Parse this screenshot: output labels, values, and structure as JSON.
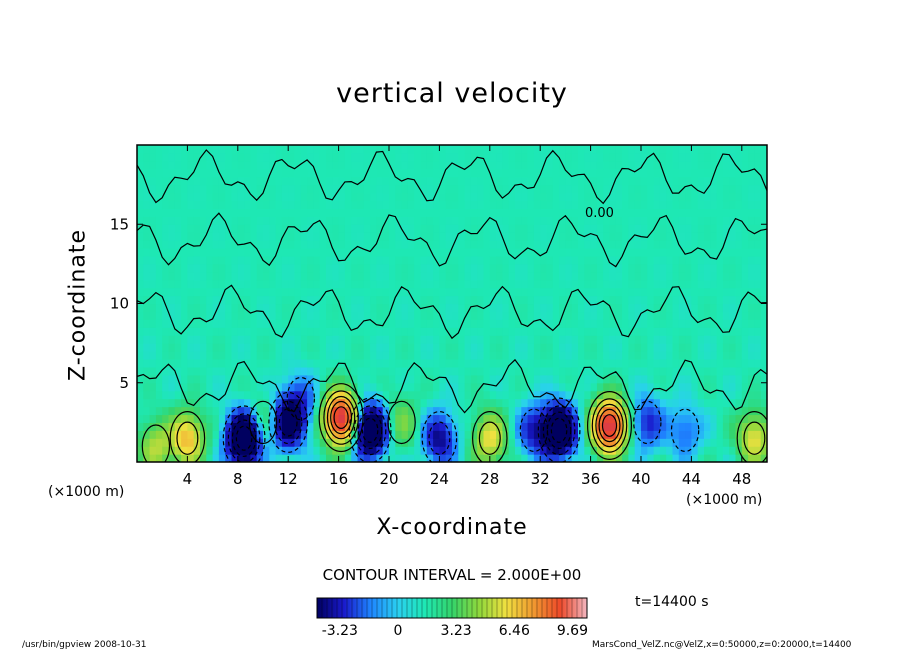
{
  "chart_data": {
    "type": "heatmap",
    "title": "vertical velocity",
    "xlabel": "X-coordinate",
    "ylabel": "Z-coordinate",
    "x_unit_left": "(×1000 m)",
    "x_unit_right": "(×1000 m)",
    "xlim": [
      0,
      50
    ],
    "ylim": [
      0,
      20
    ],
    "x_ticks": [
      4,
      8,
      12,
      16,
      20,
      24,
      28,
      32,
      36,
      40,
      44,
      48
    ],
    "y_ticks": [
      5,
      10,
      15
    ],
    "contour_interval": "CONTOUR INTERVAL = 2.000E+00",
    "contour_label": "0.00",
    "time_label": "t=14400 s",
    "colorbar": {
      "min": -4.5,
      "max": 10.5,
      "ticks": [
        -3.23,
        0,
        3.23,
        6.46,
        9.69
      ]
    },
    "updrafts": [
      {
        "x": 1.5,
        "z": 1.0,
        "peak": 3
      },
      {
        "x": 4.0,
        "z": 1.5,
        "peak": 5
      },
      {
        "x": 8.5,
        "z": 1.5,
        "peak": -9
      },
      {
        "x": 10.0,
        "z": 2.5,
        "peak": 2
      },
      {
        "x": 12.0,
        "z": 2.5,
        "peak": -6
      },
      {
        "x": 13.0,
        "z": 4.0,
        "peak": -2
      },
      {
        "x": 16.2,
        "z": 2.8,
        "peak": 10
      },
      {
        "x": 18.5,
        "z": 2.0,
        "peak": -8
      },
      {
        "x": 21.0,
        "z": 2.5,
        "peak": 2
      },
      {
        "x": 24.0,
        "z": 1.5,
        "peak": -4
      },
      {
        "x": 28.0,
        "z": 1.5,
        "peak": 4
      },
      {
        "x": 31.5,
        "z": 2.0,
        "peak": -3
      },
      {
        "x": 33.5,
        "z": 2.0,
        "peak": -8
      },
      {
        "x": 37.5,
        "z": 2.3,
        "peak": 10
      },
      {
        "x": 40.5,
        "z": 2.5,
        "peak": -3
      },
      {
        "x": 43.5,
        "z": 2.0,
        "peak": -2
      },
      {
        "x": 49.0,
        "z": 1.5,
        "peak": 4
      }
    ]
  },
  "footer": {
    "left": "/usr/bin/gpview   2008-10-31",
    "right": "MarsCond_VelZ.nc@VelZ,x=0:50000,z=0:20000,t=14400"
  }
}
